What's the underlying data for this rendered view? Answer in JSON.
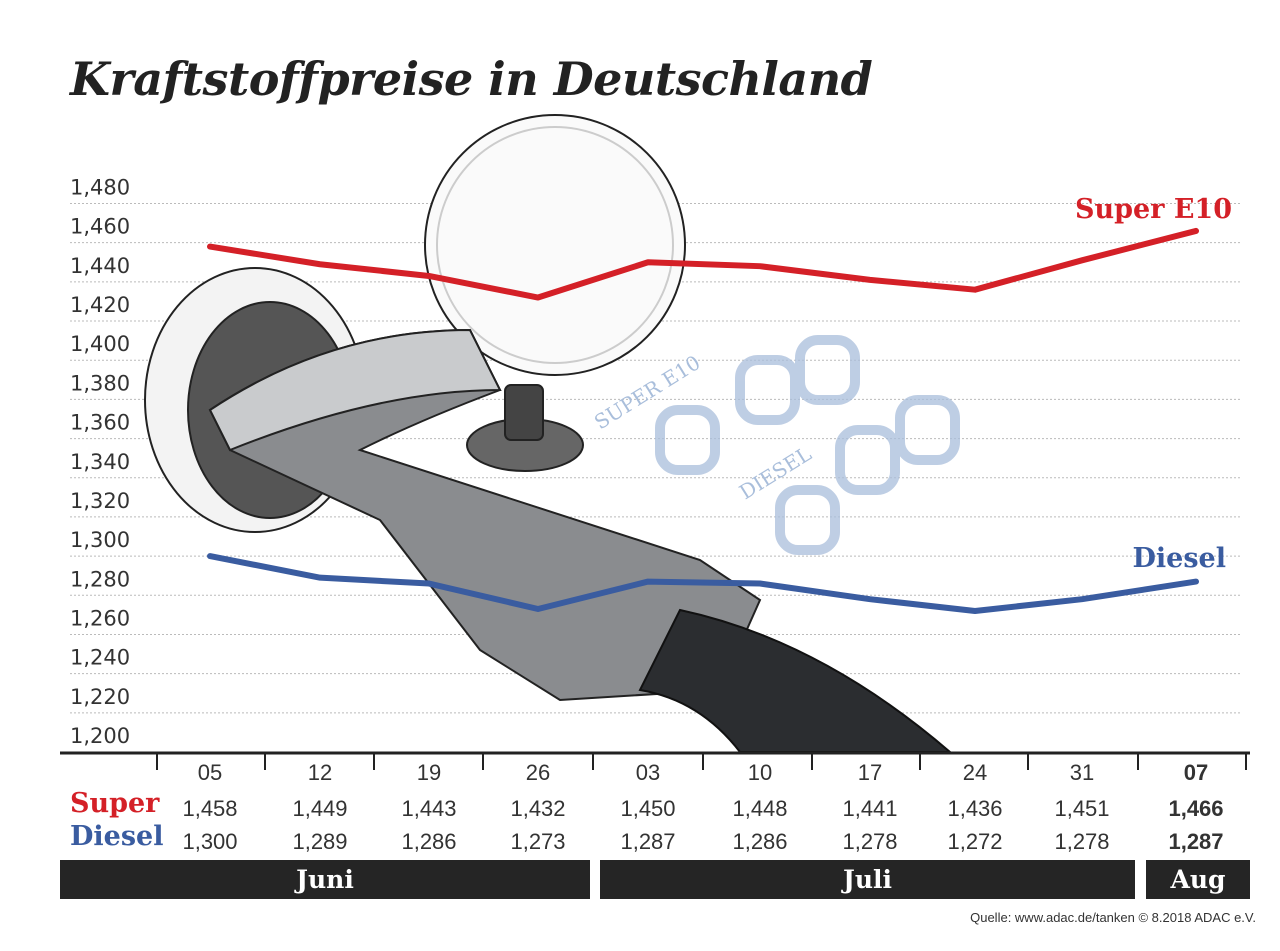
{
  "title": "Kraftstoffpreise in Deutschland",
  "source": "Quelle: www.adac.de/tanken   © 8.2018  ADAC e.V.",
  "colors": {
    "super": "#d42027",
    "diesel": "#3a5ca0",
    "bar": "#252525"
  },
  "chart_data": {
    "type": "line",
    "title": "Kraftstoffpreise in Deutschland",
    "ylim": [
      1.2,
      1.48
    ],
    "yticks": [
      "1,480",
      "1,460",
      "1,440",
      "1,420",
      "1,400",
      "1,380",
      "1,360",
      "1,340",
      "1,320",
      "1,300",
      "1,280",
      "1,260",
      "1,240",
      "1,220",
      "1,200"
    ],
    "grid": true,
    "categories": [
      "05",
      "12",
      "19",
      "26",
      "03",
      "10",
      "17",
      "24",
      "31",
      "07"
    ],
    "months": [
      {
        "label": "Juni",
        "span": 4
      },
      {
        "label": "Juli",
        "span": 5
      },
      {
        "label": "Aug",
        "span": 1
      }
    ],
    "series": [
      {
        "name": "Super E10",
        "row_label": "Super",
        "color": "#d42027",
        "values": [
          1.458,
          1.449,
          1.443,
          1.432,
          1.45,
          1.448,
          1.441,
          1.436,
          1.451,
          1.466
        ],
        "labels": [
          "1,458",
          "1,449",
          "1,443",
          "1,432",
          "1,450",
          "1,448",
          "1,441",
          "1,436",
          "1,451",
          "1,466"
        ]
      },
      {
        "name": "Diesel",
        "row_label": "Diesel",
        "color": "#3a5ca0",
        "values": [
          1.3,
          1.289,
          1.286,
          1.273,
          1.287,
          1.286,
          1.278,
          1.272,
          1.278,
          1.287
        ],
        "labels": [
          "1,300",
          "1,289",
          "1,286",
          "1,273",
          "1,287",
          "1,286",
          "1,278",
          "1,272",
          "1,278",
          "1,287"
        ]
      }
    ]
  },
  "illustration": {
    "display_labels": [
      "SUPER E10",
      "DIESEL"
    ]
  }
}
